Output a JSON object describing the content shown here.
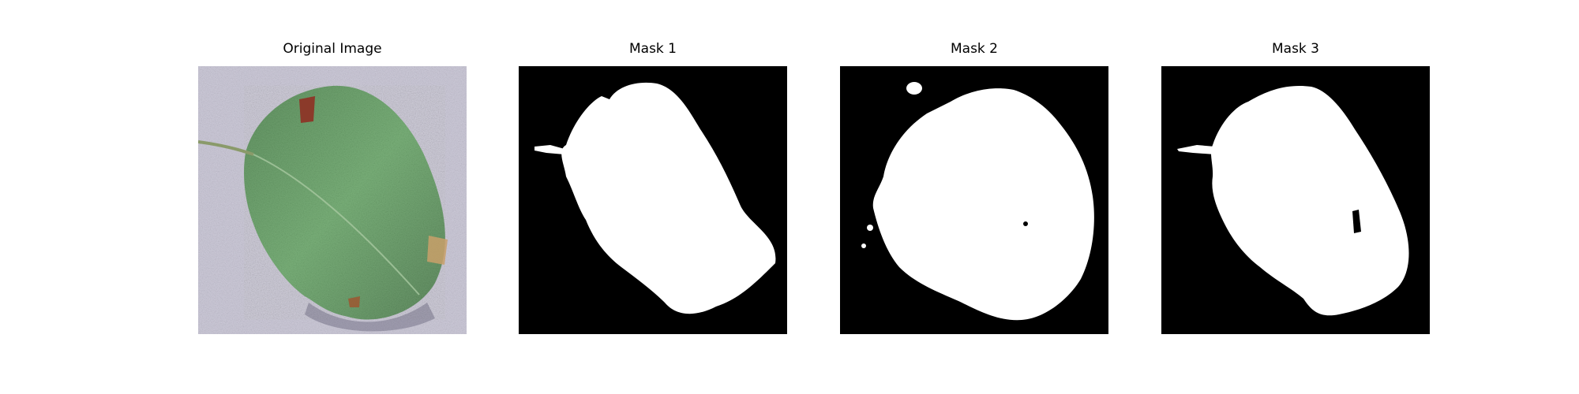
{
  "figure": {
    "panels": [
      {
        "title": "Original Image",
        "kind": "photo",
        "subject": "green leaf on gray gravel background"
      },
      {
        "title": "Mask 1",
        "kind": "mask",
        "foreground": "#ffffff",
        "background": "#000000"
      },
      {
        "title": "Mask 2",
        "kind": "mask",
        "foreground": "#ffffff",
        "background": "#000000"
      },
      {
        "title": "Mask 3",
        "kind": "mask",
        "foreground": "#ffffff",
        "background": "#000000"
      }
    ]
  },
  "colors": {
    "mask_background": "#000000",
    "mask_foreground": "#ffffff",
    "leaf_dark": "#1f4d22",
    "leaf_light": "#5aa05a",
    "ground": "#a8a4b8",
    "blemish": "#a0522d"
  }
}
